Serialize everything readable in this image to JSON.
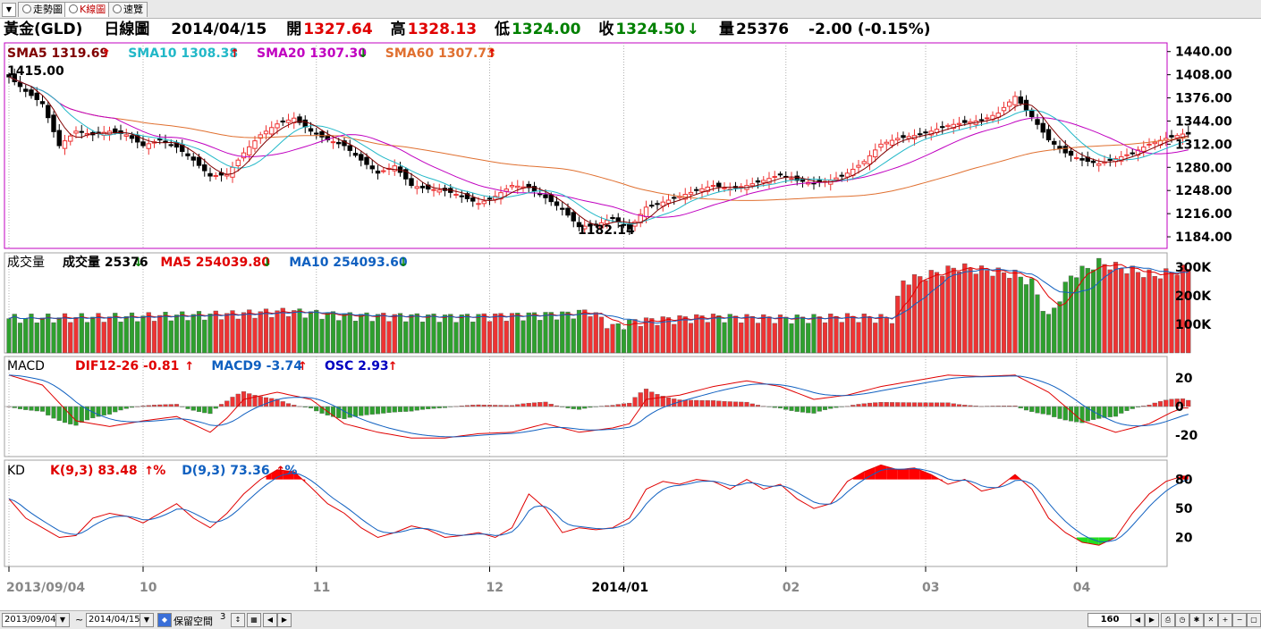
{
  "tabs": [
    {
      "label": "走勢圖",
      "active": false
    },
    {
      "label": "K線圖",
      "active": true
    },
    {
      "label": "速覽",
      "active": false
    }
  ],
  "header": {
    "symbol": "黃金(GLD)",
    "period": "日線圖",
    "date": "2014/04/15",
    "open_label": "開",
    "open": "1327.64",
    "high_label": "高",
    "high": "1328.13",
    "low_label": "低",
    "low": "1324.00",
    "close_label": "收",
    "close": "1324.50",
    "volume_label": "量",
    "volume": "25376",
    "change": "-2.00 (-0.15%)"
  },
  "legends": {
    "price": [
      {
        "label": "SMA5 1319.69",
        "color": "#800000",
        "dir": "up"
      },
      {
        "label": "SMA10 1308.38",
        "color": "#22b8c8",
        "dir": "up"
      },
      {
        "label": "SMA20 1307.30",
        "color": "#c000c0",
        "dir": "down"
      },
      {
        "label": "SMA60 1307.73",
        "color": "#e07030",
        "dir": "up"
      }
    ],
    "volume_title": "成交量",
    "volume": [
      {
        "label": "成交量 25376",
        "color": "#000000",
        "dir": "down"
      },
      {
        "label": "MA5 254039.80",
        "color": "#e00000",
        "dir": "down"
      },
      {
        "label": "MA10 254093.60",
        "color": "#1060c0",
        "dir": "down"
      }
    ],
    "macd_title": "MACD",
    "macd": [
      {
        "label": "DIF12-26 -0.81",
        "color": "#e00000",
        "dir": "up"
      },
      {
        "label": "MACD9 -3.74",
        "color": "#1060c0",
        "dir": "up"
      },
      {
        "label": "OSC 2.93",
        "color": "#0000c0",
        "dir": "up"
      }
    ],
    "kd_title": "KD",
    "kd": [
      {
        "label": "K(9,3) 83.48",
        "suffix": "%",
        "color": "#e00000",
        "dir": "up"
      },
      {
        "label": "D(9,3) 73.36",
        "suffix": "%",
        "color": "#1060c0",
        "dir": "up"
      }
    ]
  },
  "annotations": {
    "high": "1415.00",
    "low": "1182.14"
  },
  "axes": {
    "price_ticks": [
      "1440.00",
      "1408.00",
      "1376.00",
      "1344.00",
      "1312.00",
      "1280.00",
      "1248.00",
      "1216.00",
      "1184.00"
    ],
    "volume_ticks": [
      "300K",
      "200K",
      "100K"
    ],
    "macd_ticks": [
      "20",
      "0",
      "-20"
    ],
    "kd_ticks": [
      "80",
      "50",
      "20"
    ],
    "x_labels": [
      "2013/09/04",
      "10",
      "11",
      "12",
      "2014/01",
      "02",
      "03",
      "04"
    ]
  },
  "colors": {
    "up": "#ee3333",
    "down": "#2ea02e",
    "frame": "#c000c0",
    "grid": "#b0b0b0"
  },
  "statusbar": {
    "from_date": "2013/09/04",
    "to_date": "2014/04/15",
    "tilde": "~",
    "reserve_label": "保留空間",
    "reserve_value": "3",
    "zoom": "160"
  },
  "chart_data": {
    "type": "candlestick",
    "title": "黃金(GLD) 日線圖",
    "price_range": [
      1168,
      1452
    ],
    "anchors": {
      "close": [
        [
          0,
          1405
        ],
        [
          3,
          1385
        ],
        [
          6,
          1368
        ],
        [
          9,
          1310
        ],
        [
          12,
          1330
        ],
        [
          15,
          1325
        ],
        [
          18,
          1330
        ],
        [
          21,
          1325
        ],
        [
          24,
          1310
        ],
        [
          27,
          1318
        ],
        [
          30,
          1308
        ],
        [
          33,
          1290
        ],
        [
          36,
          1268
        ],
        [
          39,
          1270
        ],
        [
          42,
          1300
        ],
        [
          45,
          1325
        ],
        [
          48,
          1340
        ],
        [
          51,
          1348
        ],
        [
          54,
          1330
        ],
        [
          57,
          1318
        ],
        [
          60,
          1310
        ],
        [
          63,
          1290
        ],
        [
          66,
          1272
        ],
        [
          69,
          1282
        ],
        [
          72,
          1255
        ],
        [
          75,
          1250
        ],
        [
          78,
          1248
        ],
        [
          81,
          1240
        ],
        [
          84,
          1230
        ],
        [
          87,
          1240
        ],
        [
          90,
          1255
        ],
        [
          93,
          1252
        ],
        [
          96,
          1238
        ],
        [
          99,
          1222
        ],
        [
          102,
          1198
        ],
        [
          105,
          1200
        ],
        [
          108,
          1210
        ],
        [
          111,
          1195
        ],
        [
          114,
          1225
        ],
        [
          117,
          1232
        ],
        [
          120,
          1240
        ],
        [
          123,
          1248
        ],
        [
          126,
          1255
        ],
        [
          129,
          1250
        ],
        [
          132,
          1255
        ],
        [
          135,
          1262
        ],
        [
          138,
          1270
        ],
        [
          141,
          1262
        ],
        [
          144,
          1258
        ],
        [
          147,
          1262
        ],
        [
          150,
          1272
        ],
        [
          153,
          1288
        ],
        [
          156,
          1312
        ],
        [
          159,
          1320
        ],
        [
          162,
          1324
        ],
        [
          165,
          1330
        ],
        [
          168,
          1338
        ],
        [
          171,
          1342
        ],
        [
          174,
          1345
        ],
        [
          177,
          1355
        ],
        [
          180,
          1378
        ],
        [
          183,
          1350
        ],
        [
          186,
          1318
        ],
        [
          189,
          1300
        ],
        [
          192,
          1290
        ],
        [
          195,
          1285
        ],
        [
          198,
          1292
        ],
        [
          201,
          1300
        ],
        [
          204,
          1312
        ],
        [
          207,
          1320
        ],
        [
          210,
          1326
        ]
      ],
      "volume_k": [
        [
          0,
          120
        ],
        [
          20,
          125
        ],
        [
          40,
          135
        ],
        [
          50,
          145
        ],
        [
          60,
          130
        ],
        [
          80,
          125
        ],
        [
          100,
          135
        ],
        [
          104,
          145
        ],
        [
          108,
          90
        ],
        [
          112,
          110
        ],
        [
          125,
          125
        ],
        [
          140,
          120
        ],
        [
          150,
          125
        ],
        [
          158,
          120
        ],
        [
          160,
          250
        ],
        [
          170,
          300
        ],
        [
          180,
          275
        ],
        [
          183,
          245
        ],
        [
          186,
          120
        ],
        [
          190,
          270
        ],
        [
          195,
          315
        ],
        [
          205,
          270
        ],
        [
          212,
          300
        ],
        [
          214,
          20
        ]
      ],
      "dif": [
        [
          0,
          22
        ],
        [
          6,
          15
        ],
        [
          12,
          -10
        ],
        [
          18,
          -14
        ],
        [
          24,
          -10
        ],
        [
          30,
          -7
        ],
        [
          36,
          -18
        ],
        [
          39,
          -8
        ],
        [
          42,
          5
        ],
        [
          48,
          10
        ],
        [
          54,
          5
        ],
        [
          60,
          -12
        ],
        [
          66,
          -18
        ],
        [
          72,
          -22
        ],
        [
          78,
          -22
        ],
        [
          84,
          -19
        ],
        [
          90,
          -18
        ],
        [
          96,
          -12
        ],
        [
          102,
          -18
        ],
        [
          108,
          -15
        ],
        [
          111,
          -12
        ],
        [
          114,
          5
        ],
        [
          120,
          8
        ],
        [
          126,
          14
        ],
        [
          132,
          18
        ],
        [
          138,
          14
        ],
        [
          144,
          5
        ],
        [
          150,
          8
        ],
        [
          156,
          14
        ],
        [
          162,
          18
        ],
        [
          168,
          22
        ],
        [
          174,
          21
        ],
        [
          180,
          22
        ],
        [
          186,
          10
        ],
        [
          192,
          -10
        ],
        [
          198,
          -18
        ],
        [
          204,
          -12
        ],
        [
          208,
          -4
        ],
        [
          210,
          -1
        ]
      ],
      "k": [
        [
          0,
          60
        ],
        [
          3,
          40
        ],
        [
          6,
          30
        ],
        [
          9,
          20
        ],
        [
          12,
          22
        ],
        [
          15,
          40
        ],
        [
          18,
          45
        ],
        [
          21,
          42
        ],
        [
          24,
          35
        ],
        [
          27,
          45
        ],
        [
          30,
          55
        ],
        [
          33,
          40
        ],
        [
          36,
          30
        ],
        [
          39,
          45
        ],
        [
          42,
          65
        ],
        [
          45,
          80
        ],
        [
          48,
          90
        ],
        [
          51,
          88
        ],
        [
          54,
          72
        ],
        [
          57,
          55
        ],
        [
          60,
          45
        ],
        [
          63,
          30
        ],
        [
          66,
          20
        ],
        [
          69,
          25
        ],
        [
          72,
          32
        ],
        [
          75,
          28
        ],
        [
          78,
          20
        ],
        [
          81,
          22
        ],
        [
          84,
          25
        ],
        [
          87,
          20
        ],
        [
          90,
          30
        ],
        [
          93,
          65
        ],
        [
          96,
          50
        ],
        [
          99,
          25
        ],
        [
          102,
          30
        ],
        [
          105,
          28
        ],
        [
          108,
          30
        ],
        [
          111,
          40
        ],
        [
          114,
          70
        ],
        [
          117,
          78
        ],
        [
          120,
          75
        ],
        [
          123,
          80
        ],
        [
          126,
          78
        ],
        [
          129,
          70
        ],
        [
          132,
          80
        ],
        [
          135,
          70
        ],
        [
          138,
          75
        ],
        [
          141,
          60
        ],
        [
          144,
          50
        ],
        [
          147,
          55
        ],
        [
          150,
          78
        ],
        [
          153,
          88
        ],
        [
          156,
          95
        ],
        [
          159,
          90
        ],
        [
          162,
          92
        ],
        [
          165,
          85
        ],
        [
          168,
          75
        ],
        [
          171,
          80
        ],
        [
          174,
          68
        ],
        [
          177,
          72
        ],
        [
          180,
          85
        ],
        [
          183,
          70
        ],
        [
          186,
          40
        ],
        [
          189,
          25
        ],
        [
          192,
          15
        ],
        [
          195,
          12
        ],
        [
          198,
          20
        ],
        [
          201,
          45
        ],
        [
          204,
          65
        ],
        [
          207,
          78
        ],
        [
          210,
          83.48
        ]
      ]
    }
  }
}
